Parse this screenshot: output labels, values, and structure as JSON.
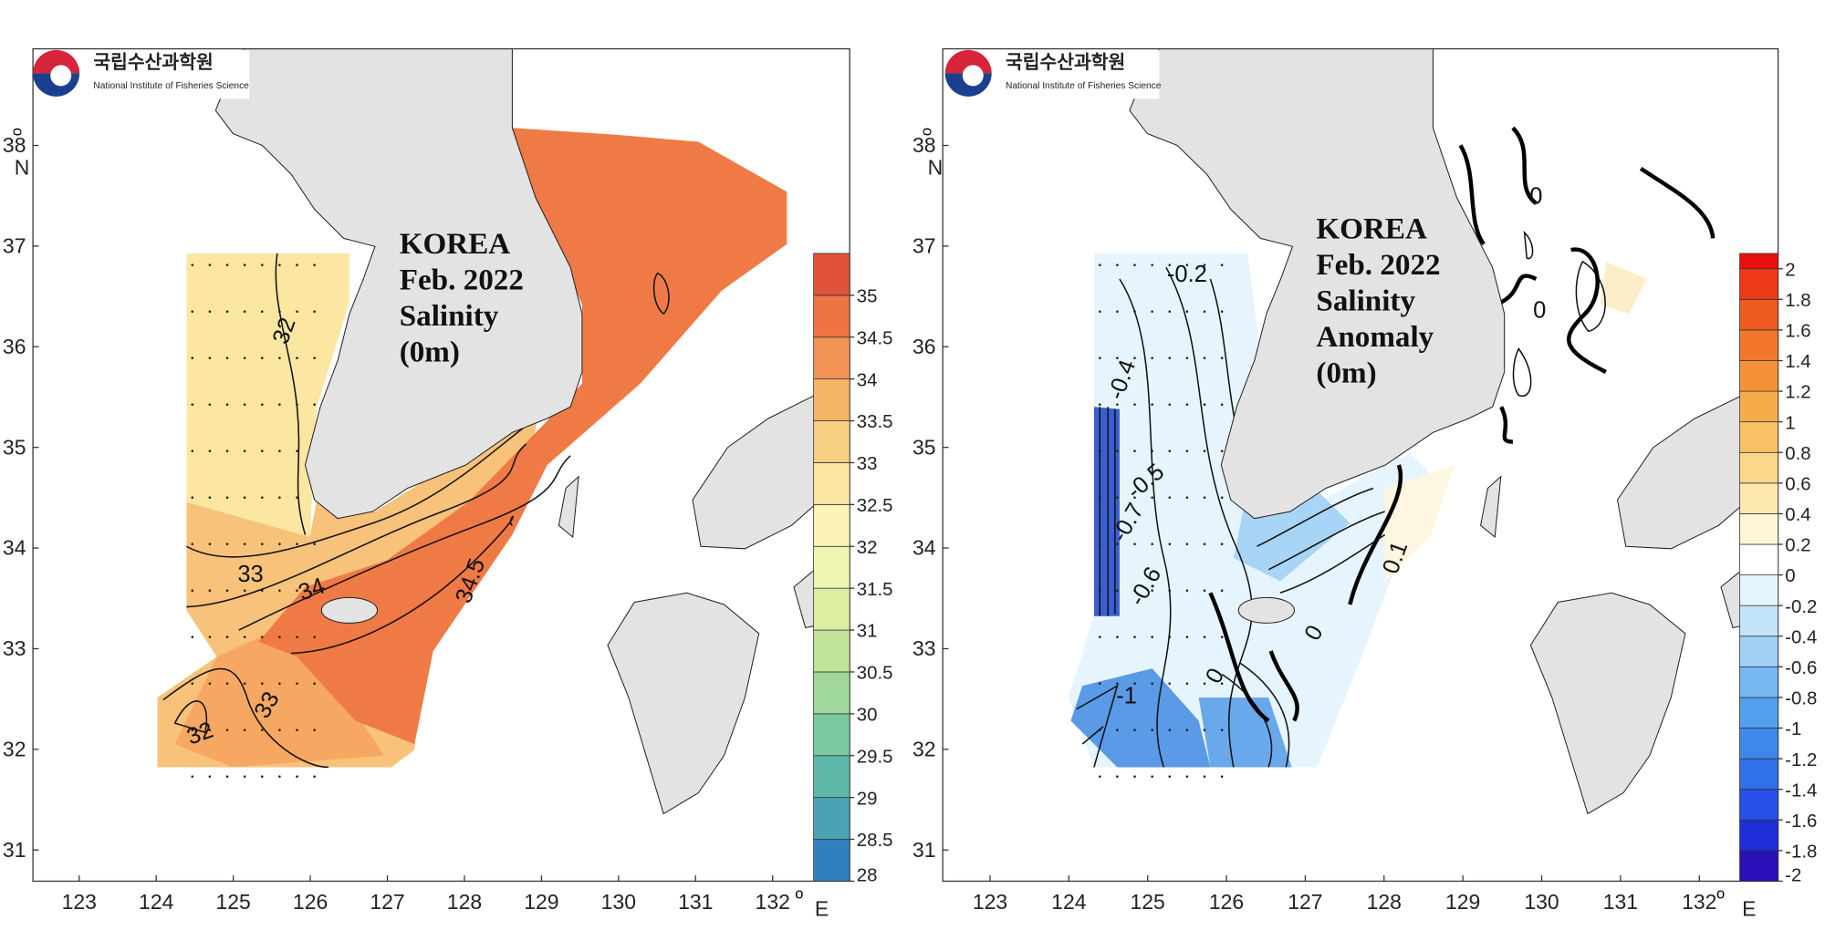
{
  "panels": [
    {
      "logo": {
        "korean": "국립수산과학원",
        "english": "National Institute of Fisheries Science"
      },
      "title": [
        "KOREA",
        "Feb. 2022",
        "Salinity",
        "(0m)"
      ],
      "xlim": [
        122.4,
        133.0
      ],
      "ylim": [
        30.69,
        38.96
      ],
      "xticks": [
        123,
        124,
        125,
        126,
        127,
        128,
        129,
        130,
        131,
        132
      ],
      "yticks": [
        31,
        32,
        33,
        34,
        35,
        36,
        37,
        38
      ],
      "degree_mark": "o",
      "x_unit": "E",
      "y_unit": "N",
      "colorbar": {
        "lim": [
          28,
          35.5
        ],
        "levels": [
          28,
          28.5,
          29,
          29.5,
          30,
          30.5,
          31,
          31.5,
          32,
          32.5,
          33,
          33.5,
          34,
          34.5,
          35
        ],
        "colors": [
          "#2f7fc1",
          "#4aa3b5",
          "#5fb8a8",
          "#7ccaa0",
          "#a0d79a",
          "#c2e49a",
          "#dceea2",
          "#eef5b0",
          "#fbf3b8",
          "#fbe6a2",
          "#f8cf80",
          "#f6b468",
          "#f29355",
          "#ee7446",
          "#e0523a"
        ]
      },
      "contour_labels": [
        32,
        33,
        34,
        34.5,
        33,
        32
      ]
    },
    {
      "logo": {
        "korean": "국립수산과학원",
        "english": "National Institute of Fisheries Science"
      },
      "title": [
        "KOREA",
        "Feb. 2022",
        "Salinity",
        "Anomaly",
        "(0m)"
      ],
      "xlim": [
        122.4,
        133.0
      ],
      "ylim": [
        30.69,
        38.96
      ],
      "xticks": [
        123,
        124,
        125,
        126,
        127,
        128,
        129,
        130,
        131,
        132
      ],
      "yticks": [
        31,
        32,
        33,
        34,
        35,
        36,
        37,
        38
      ],
      "degree_mark": "o",
      "x_unit": "E",
      "y_unit": "N",
      "colorbar": {
        "lim": [
          -2,
          2.1
        ],
        "levels": [
          -2,
          -1.8,
          -1.6,
          -1.4,
          -1.2,
          -1,
          -0.8,
          -0.6,
          -0.4,
          -0.2,
          0,
          0.2,
          0.4,
          0.6,
          0.8,
          1,
          1.2,
          1.4,
          1.6,
          1.8,
          2
        ],
        "colors": [
          "#2a10b8",
          "#1f2fd8",
          "#2650e6",
          "#3070e8",
          "#3e88ea",
          "#55a0ee",
          "#78b8f2",
          "#a0d0f6",
          "#c4e4fa",
          "#e4f4fd",
          "#ffffff",
          "#fff6d8",
          "#fde9b0",
          "#fbd78a",
          "#f9c266",
          "#f7ac4c",
          "#f59238",
          "#f2772a",
          "#ef5a20",
          "#ec3a18",
          "#e81010"
        ]
      },
      "contour_labels": [
        -0.2,
        -0.4,
        -0.5,
        -0.7,
        -0.6,
        -1,
        0,
        0,
        0,
        0,
        0.1
      ]
    }
  ]
}
